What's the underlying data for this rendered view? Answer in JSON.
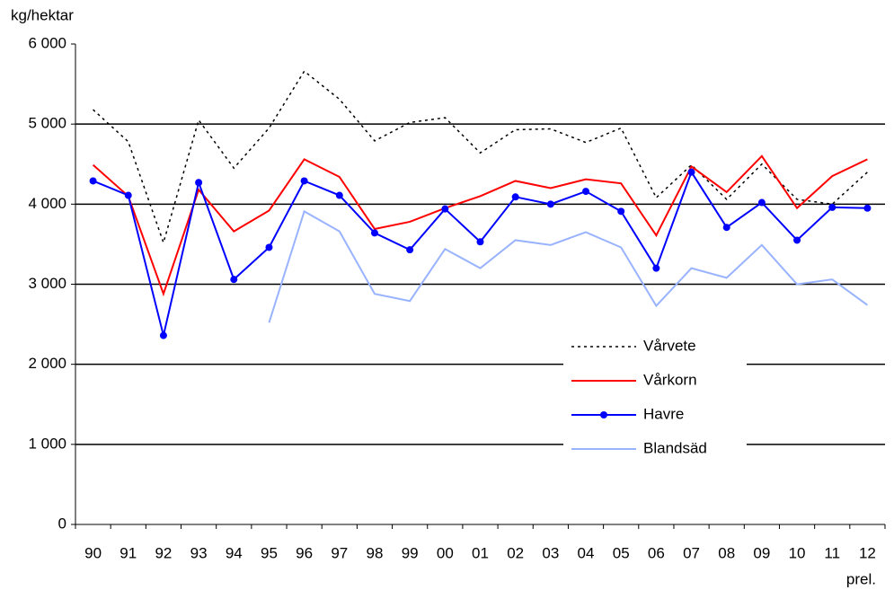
{
  "chart_data": {
    "type": "line",
    "y_label": "kg/hektar",
    "x_note": "prel.",
    "categories": [
      "90",
      "91",
      "92",
      "93",
      "94",
      "95",
      "96",
      "97",
      "98",
      "99",
      "00",
      "01",
      "02",
      "03",
      "04",
      "05",
      "06",
      "07",
      "08",
      "09",
      "10",
      "11",
      "12"
    ],
    "series": [
      {
        "name": "Vårvete",
        "color": "#000000",
        "dash": "dotted",
        "values": [
          5180,
          4780,
          3520,
          5050,
          4450,
          4950,
          5660,
          5310,
          4790,
          5020,
          5080,
          4640,
          4930,
          4940,
          4770,
          4950,
          4080,
          4490,
          4060,
          4500,
          4060,
          4000,
          4400
        ]
      },
      {
        "name": "Vårkorn",
        "color": "#ff0000",
        "values": [
          4490,
          4100,
          2880,
          4180,
          3660,
          3920,
          4560,
          4340,
          3690,
          3780,
          3950,
          4100,
          4290,
          4200,
          4310,
          4260,
          3610,
          4470,
          4150,
          4600,
          3950,
          4350,
          4560
        ]
      },
      {
        "name": "Havre",
        "color": "#0000ff",
        "marker": "circle",
        "values": [
          4290,
          4110,
          2360,
          4270,
          3060,
          3460,
          4290,
          4110,
          3640,
          3430,
          3940,
          3530,
          4090,
          4000,
          4160,
          3910,
          3200,
          4400,
          3710,
          4020,
          3550,
          3960,
          3950
        ]
      },
      {
        "name": "Blandsäd",
        "color": "#99b3ff",
        "values": [
          null,
          null,
          null,
          null,
          null,
          2520,
          3910,
          3660,
          2880,
          2790,
          3440,
          3200,
          3550,
          3490,
          3650,
          3460,
          2730,
          3200,
          3080,
          3490,
          3000,
          3060,
          2740
        ]
      }
    ],
    "ylim": [
      0,
      6000
    ],
    "yticks": [
      {
        "value": 0,
        "label": "0"
      },
      {
        "value": 1000,
        "label": "1 000"
      },
      {
        "value": 2000,
        "label": "2 000"
      },
      {
        "value": 3000,
        "label": "3 000"
      },
      {
        "value": 4000,
        "label": "4 000"
      },
      {
        "value": 5000,
        "label": "5 000"
      },
      {
        "value": 6000,
        "label": "6 000"
      }
    ],
    "grid": true
  }
}
